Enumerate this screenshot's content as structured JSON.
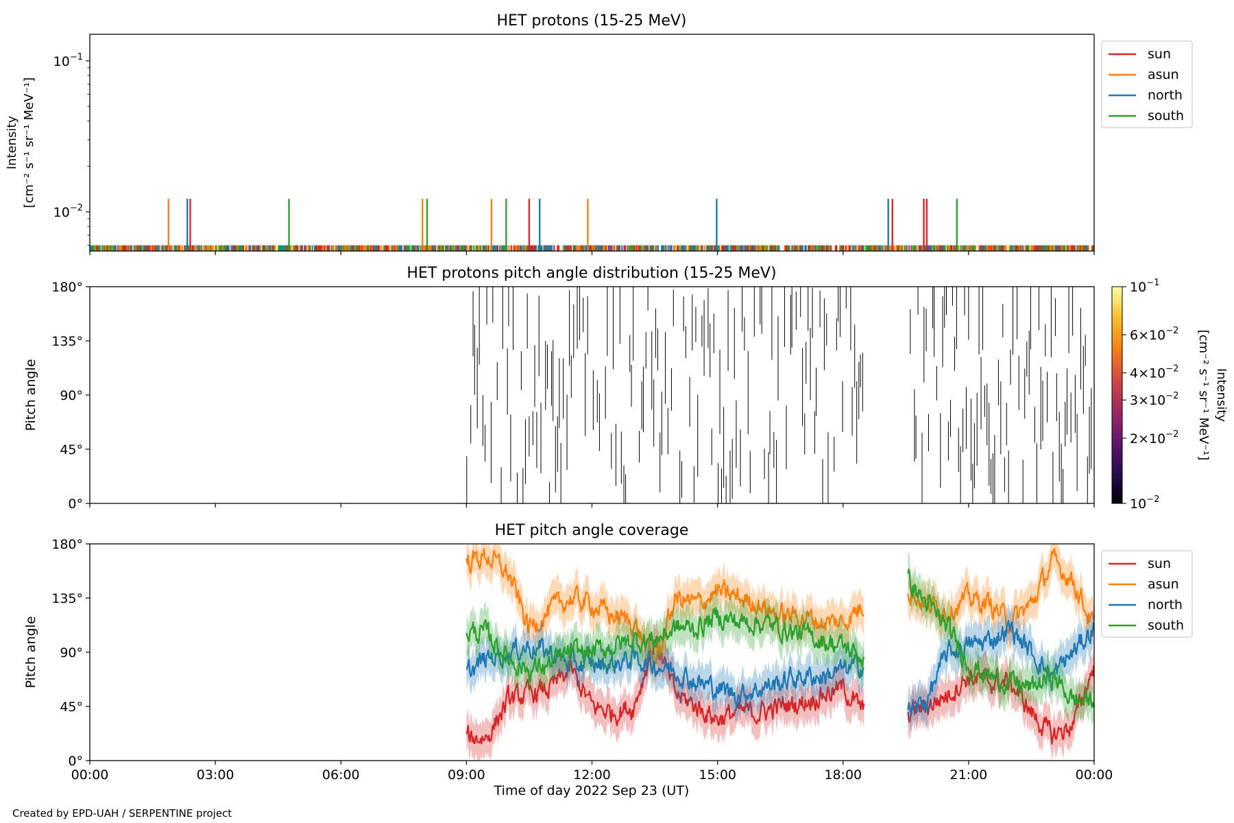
{
  "credit": "Created by EPD-UAH / SERPENTINE project",
  "xaxis": {
    "label": "Time of day 2022 Sep 23 (UT)",
    "ticks": [
      "00:00",
      "03:00",
      "06:00",
      "09:00",
      "12:00",
      "15:00",
      "18:00",
      "21:00",
      "00:00"
    ],
    "range_hours": [
      0,
      24
    ]
  },
  "colors": {
    "sun": "#d62728",
    "asun": "#ff7f0e",
    "north": "#1f77b4",
    "south": "#2ca02c"
  },
  "chart_data": [
    {
      "type": "line",
      "title": "HET protons (15-25 MeV)",
      "ylabel": "Intensity",
      "ylabel_units": "[cm⁻² s⁻¹ sr⁻¹ MeV⁻¹]",
      "yscale": "log",
      "ylim": [
        0.0055,
        0.15
      ],
      "yticks": [
        {
          "value": 0.1,
          "base": "10",
          "exp": "−1"
        },
        {
          "value": 0.01,
          "base": "10",
          "exp": "−2"
        }
      ],
      "legend": {
        "placement": "outside-right-top",
        "entries": [
          "sun",
          "asun",
          "north",
          "south"
        ]
      },
      "baseline_value": 0.006,
      "spike_value": 0.0122,
      "spikes": [
        {
          "series": "asun",
          "hour": 1.88
        },
        {
          "series": "north",
          "hour": 2.33
        },
        {
          "series": "sun",
          "hour": 2.4
        },
        {
          "series": "south",
          "hour": 4.76
        },
        {
          "series": "asun",
          "hour": 7.95
        },
        {
          "series": "south",
          "hour": 8.06
        },
        {
          "series": "asun",
          "hour": 9.6
        },
        {
          "series": "south",
          "hour": 9.95
        },
        {
          "series": "sun",
          "hour": 10.5
        },
        {
          "series": "north",
          "hour": 10.75
        },
        {
          "series": "asun",
          "hour": 11.9
        },
        {
          "series": "north",
          "hour": 14.98
        },
        {
          "series": "north",
          "hour": 19.08
        },
        {
          "series": "sun",
          "hour": 19.18
        },
        {
          "series": "sun",
          "hour": 19.93
        },
        {
          "series": "sun",
          "hour": 20
        },
        {
          "series": "south",
          "hour": 20.72
        }
      ]
    },
    {
      "type": "heatmap",
      "title": "HET protons pitch angle distribution (15-25 MeV)",
      "ylabel": "Pitch angle",
      "ylim": [
        0,
        180
      ],
      "yticks": [
        "0°",
        "45°",
        "90°",
        "135°",
        "180°"
      ],
      "colorbar": {
        "label": "Intensity",
        "units": "[cm⁻² s⁻¹ sr⁻¹ MeV⁻¹]",
        "scale": "log",
        "range": [
          0.01,
          0.1
        ],
        "ticks": [
          {
            "value": 0.1,
            "mant": "",
            "base": "10",
            "exp": "−1"
          },
          {
            "value": 0.06,
            "mant": "6×",
            "base": "10",
            "exp": "−2"
          },
          {
            "value": 0.04,
            "mant": "4×",
            "base": "10",
            "exp": "−2"
          },
          {
            "value": 0.03,
            "mant": "3×",
            "base": "10",
            "exp": "−2"
          },
          {
            "value": 0.02,
            "mant": "2×",
            "base": "10",
            "exp": "−2"
          },
          {
            "value": 0.01,
            "mant": "",
            "base": "10",
            "exp": "−2"
          }
        ],
        "stops": [
          "#000004",
          "#280b54",
          "#65156e",
          "#9f2a63",
          "#d44842",
          "#f57d15",
          "#fac228",
          "#fcffa4"
        ]
      },
      "data_coverage_hours": [
        [
          9.0,
          18.5
        ],
        [
          19.55,
          24.0
        ]
      ]
    },
    {
      "type": "line",
      "title": "HET pitch angle coverage",
      "ylabel": "Pitch angle",
      "ylim": [
        0,
        180
      ],
      "yticks": [
        "0°",
        "45°",
        "90°",
        "135°",
        "180°"
      ],
      "legend": {
        "placement": "outside-right-top",
        "entries": [
          "sun",
          "asun",
          "north",
          "south"
        ]
      },
      "segments_hours": [
        [
          9.0,
          18.5
        ],
        [
          19.55,
          24.0
        ]
      ],
      "series": [
        {
          "name": "sun",
          "color": "#d62728",
          "x": [
            9,
            9.5,
            10,
            10.5,
            11,
            11.5,
            12,
            12.5,
            13,
            13.5,
            14,
            14.5,
            15,
            15.5,
            16,
            16.5,
            17,
            17.5,
            18,
            18.5,
            19.55,
            20,
            20.5,
            21,
            21.5,
            22,
            22.5,
            23,
            23.5,
            24
          ],
          "y": [
            18,
            20,
            50,
            55,
            60,
            75,
            45,
            40,
            45,
            100,
            55,
            45,
            35,
            40,
            40,
            45,
            48,
            55,
            60,
            40,
            40,
            45,
            55,
            70,
            65,
            65,
            40,
            20,
            30,
            80
          ]
        },
        {
          "name": "asun",
          "color": "#ff7f0e",
          "x": [
            9,
            9.5,
            10,
            10.5,
            11,
            11.5,
            12,
            12.5,
            13,
            13.5,
            14,
            14.5,
            15,
            15.5,
            16,
            16.5,
            17,
            17.5,
            18,
            18.5,
            19.55,
            20,
            20.5,
            21,
            21.5,
            22,
            22.5,
            23,
            23.5,
            24
          ],
          "y": [
            165,
            170,
            155,
            110,
            125,
            135,
            130,
            120,
            115,
            80,
            135,
            130,
            140,
            135,
            130,
            120,
            120,
            115,
            115,
            130,
            140,
            130,
            125,
            135,
            130,
            115,
            130,
            165,
            150,
            110
          ]
        },
        {
          "name": "north",
          "color": "#1f77b4",
          "x": [
            9,
            9.5,
            10,
            10.5,
            11,
            11.5,
            12,
            12.5,
            13,
            13.5,
            14,
            14.5,
            15,
            15.5,
            16,
            16.5,
            17,
            17.5,
            18,
            18.5,
            19.55,
            20,
            20.5,
            21,
            21.5,
            22,
            22.5,
            23,
            23.5,
            24
          ],
          "y": [
            72,
            85,
            90,
            95,
            90,
            80,
            80,
            80,
            85,
            80,
            75,
            65,
            60,
            55,
            60,
            65,
            70,
            70,
            75,
            80,
            40,
            50,
            90,
            95,
            100,
            110,
            90,
            70,
            90,
            110
          ]
        },
        {
          "name": "south",
          "color": "#2ca02c",
          "x": [
            9,
            9.5,
            10,
            10.5,
            11,
            11.5,
            12,
            12.5,
            13,
            13.5,
            14,
            14.5,
            15,
            15.5,
            16,
            16.5,
            17,
            17.5,
            18,
            18.5,
            19.55,
            20,
            20.5,
            21,
            21.5,
            22,
            22.5,
            23,
            23.5,
            24
          ],
          "y": [
            108,
            105,
            85,
            75,
            80,
            90,
            90,
            95,
            100,
            100,
            110,
            110,
            120,
            115,
            115,
            110,
            105,
            100,
            95,
            85,
            150,
            130,
            110,
            80,
            70,
            65,
            60,
            70,
            50,
            50
          ]
        }
      ]
    }
  ]
}
